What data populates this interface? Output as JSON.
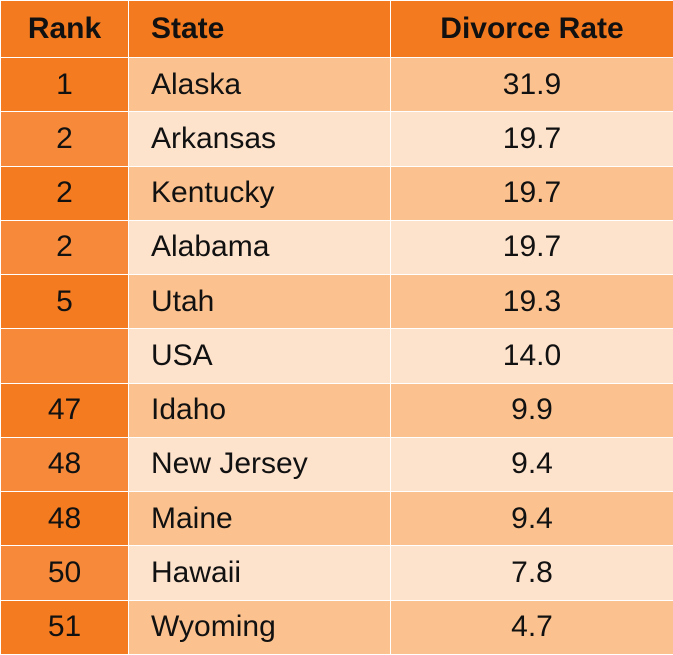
{
  "table": {
    "headers": [
      "Rank",
      "State",
      "Divorce Rate"
    ],
    "rows": [
      [
        "1",
        "Alaska",
        "31.9"
      ],
      [
        "2",
        "Arkansas",
        "19.7"
      ],
      [
        "2",
        "Kentucky",
        "19.7"
      ],
      [
        "2",
        "Alabama",
        "19.7"
      ],
      [
        "5",
        "Utah",
        "19.3"
      ],
      [
        null,
        "USA",
        "14.0"
      ],
      [
        "47",
        "Idaho",
        "9.9"
      ],
      [
        "48",
        "New Jersey",
        "9.4"
      ],
      [
        "48",
        "Maine",
        "9.4"
      ],
      [
        "50",
        "Hawaii",
        "7.8"
      ],
      [
        "51",
        "Wyoming",
        "4.7"
      ]
    ]
  }
}
